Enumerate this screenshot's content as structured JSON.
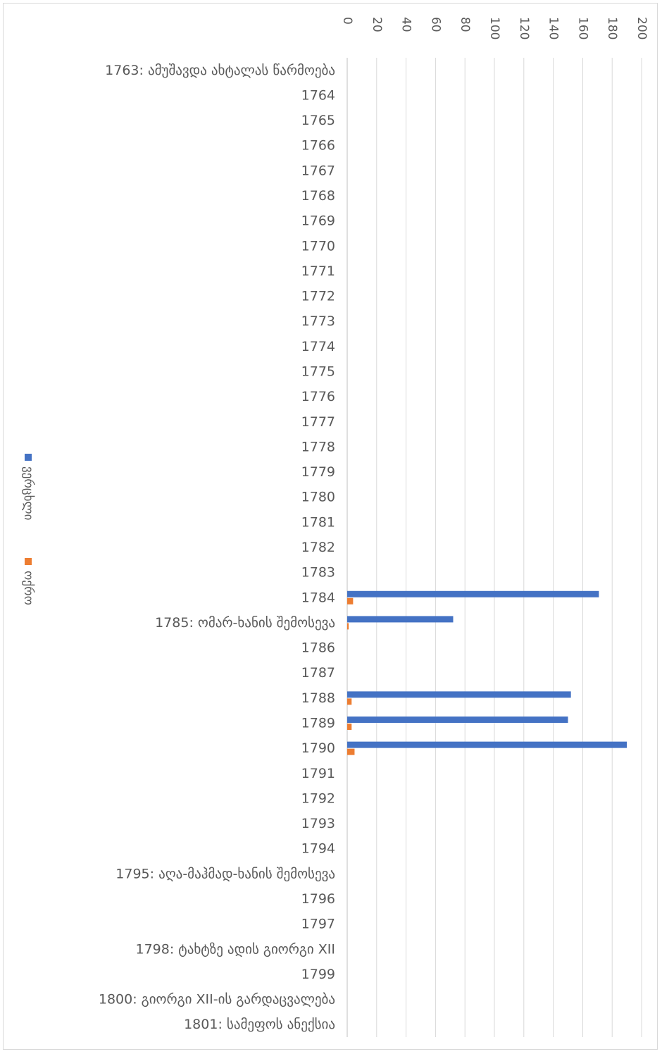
{
  "chart_data": {
    "type": "bar",
    "orientation": "horizontal",
    "title": "",
    "xlabel": "",
    "ylabel": "",
    "xlim": [
      0,
      200
    ],
    "x_ticks": [
      0,
      20,
      40,
      60,
      80,
      100,
      120,
      140,
      160,
      180,
      200
    ],
    "grid": true,
    "legend": "left",
    "categories": [
      "1763: ამუშავდა ახტალას წარმოება",
      "1764",
      "1765",
      "1766",
      "1767",
      "1768",
      "1769",
      "1770",
      "1771",
      "1772",
      "1773",
      "1774",
      "1775",
      "1776",
      "1777",
      "1778",
      "1779",
      "1780",
      "1781",
      "1782",
      "1783",
      "1784",
      "1785: ომარ-ხანის შემოსევა",
      "1786",
      "1787",
      "1788",
      "1789",
      "1790",
      "1791",
      "1792",
      "1793",
      "1794",
      "1795: აღა-მაჰმად-ხანის შემოსევა",
      "1796",
      "1797",
      "1798: ტახტზე ადის გიორგი XII",
      "1799",
      "1800: გიორგი XII-ის გარდაცვალება",
      "1801: სამეფოს ანექსია"
    ],
    "series": [
      {
        "name": "ვერცხლი",
        "color": "#4472c4",
        "values": [
          null,
          null,
          null,
          null,
          null,
          null,
          null,
          null,
          null,
          null,
          null,
          null,
          null,
          null,
          null,
          null,
          null,
          null,
          null,
          null,
          null,
          171,
          72,
          null,
          null,
          152,
          150,
          190,
          null,
          null,
          null,
          null,
          null,
          null,
          null,
          null,
          null,
          null,
          null
        ]
      },
      {
        "name": "ოქრო",
        "color": "#ed7d31",
        "values": [
          null,
          null,
          null,
          null,
          null,
          null,
          null,
          null,
          null,
          null,
          null,
          null,
          null,
          null,
          null,
          null,
          null,
          null,
          null,
          null,
          null,
          4,
          1,
          null,
          null,
          3,
          3,
          5,
          null,
          null,
          null,
          null,
          null,
          null,
          null,
          null,
          null,
          null,
          null
        ]
      }
    ]
  }
}
